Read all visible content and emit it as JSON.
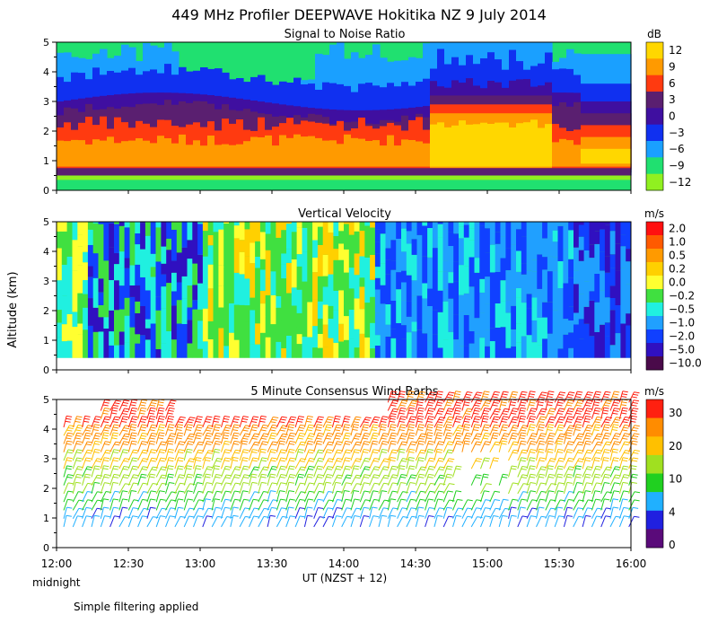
{
  "title": "449 MHz Profiler DEEPWAVE Hokitika NZ  9 July 2014",
  "y_axis_label": "Altitude (km)",
  "x_axis_label": "UT  (NZST + 12)",
  "midnight_label": "midnight",
  "footnote": "Simple filtering applied",
  "chart_data": [
    {
      "type": "heatmap",
      "title": "Signal to Noise Ratio",
      "unit": "dB",
      "x_range": [
        "12:00",
        "16:00"
      ],
      "ylim": [
        0,
        5
      ],
      "yticks": [
        0,
        1,
        2,
        3,
        4,
        5
      ],
      "xticks": [
        "12:00",
        "12:30",
        "13:00",
        "13:30",
        "14:00",
        "14:30",
        "15:00",
        "15:30",
        "16:00"
      ],
      "colorbar": {
        "labels": [
          "12",
          "9",
          "6",
          "3",
          "0",
          "−3",
          "−6",
          "−9",
          "−12"
        ],
        "colors": [
          "#ffd700",
          "#ff9a00",
          "#ff3a10",
          "#5a1f70",
          "#3f0fa0",
          "#1030f0",
          "#1aa0ff",
          "#20e070",
          "#90f020"
        ]
      }
    },
    {
      "type": "heatmap",
      "title": "Vertical Velocity",
      "unit": "m/s",
      "x_range": [
        "12:00",
        "16:00"
      ],
      "ylim": [
        0,
        5
      ],
      "yticks": [
        0,
        1,
        2,
        3,
        4,
        5
      ],
      "xticks": [
        "12:00",
        "12:30",
        "13:00",
        "13:30",
        "14:00",
        "14:30",
        "15:00",
        "15:30",
        "16:00"
      ],
      "colorbar": {
        "labels": [
          "2.0",
          "1.0",
          "0.5",
          "0.2",
          "0.0",
          "−0.2",
          "−0.5",
          "−1.0",
          "−2.0",
          "−5.0",
          "−10.0"
        ],
        "colors": [
          "#ff1010",
          "#ff5a00",
          "#ff9a00",
          "#ffd000",
          "#ffff30",
          "#40e040",
          "#20f0e0",
          "#20a0ff",
          "#1040ff",
          "#3010c0",
          "#4a0a4a"
        ]
      }
    },
    {
      "type": "scatter",
      "title": "5 Minute Consensus Wind Barbs",
      "unit": "m/s",
      "x_range": [
        "12:00",
        "16:00"
      ],
      "ylim": [
        0,
        5
      ],
      "yticks": [
        0,
        1,
        2,
        3,
        4,
        5
      ],
      "xticks": [
        "12:00",
        "12:30",
        "13:00",
        "13:30",
        "14:00",
        "14:30",
        "15:00",
        "15:30",
        "16:00"
      ],
      "colorbar": {
        "labels": [
          "30",
          "20",
          "10",
          "4",
          "0"
        ],
        "colors": [
          "#ff2010",
          "#ff8c00",
          "#ffc000",
          "#a0e020",
          "#20d020",
          "#20b0ff",
          "#2020e0",
          "#5a0a7a"
        ]
      }
    }
  ]
}
